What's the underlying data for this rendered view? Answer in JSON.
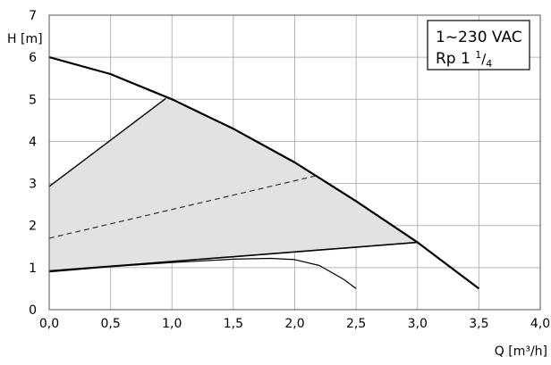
{
  "chart_data": {
    "type": "line",
    "xlabel": "Q [m³/h]",
    "ylabel": "H [m]",
    "xlim": [
      0,
      4.0
    ],
    "ylim": [
      0,
      7
    ],
    "grid": true,
    "x_ticks": [
      "0,0",
      "0,5",
      "1,0",
      "1,5",
      "2,0",
      "2,5",
      "3,0",
      "3,5",
      "4,0"
    ],
    "y_ticks": [
      "0",
      "1",
      "2",
      "3",
      "4",
      "5",
      "6",
      "7"
    ],
    "legend_box": {
      "line1": "1~230 VAC",
      "line2_prefix": "Rp 1 ",
      "line2_num": "1",
      "line2_slash": "/",
      "line2_den": "4"
    },
    "shaded_region": [
      [
        0,
        0.92
      ],
      [
        0.0,
        2.93
      ],
      [
        0.95,
        5.02
      ],
      [
        1.5,
        4.3
      ],
      [
        2.0,
        3.5
      ],
      [
        2.5,
        2.58
      ],
      [
        3.0,
        1.6
      ],
      [
        1.0,
        1.12
      ]
    ],
    "series": [
      {
        "style": "max-curve",
        "x": [
          0,
          0.5,
          1.0,
          1.5,
          2.0,
          2.5,
          3.0,
          3.5
        ],
        "y": [
          6.0,
          5.6,
          5.0,
          4.3,
          3.5,
          2.58,
          1.6,
          0.5
        ]
      },
      {
        "style": "constant-pressure-max",
        "x": [
          0,
          0.95
        ],
        "y": [
          2.93,
          5.02
        ]
      },
      {
        "style": "dashed",
        "x": [
          0,
          2.2
        ],
        "y": [
          1.7,
          3.2
        ]
      },
      {
        "style": "lower-limit",
        "x": [
          0,
          3.0
        ],
        "y": [
          0.92,
          1.6
        ]
      },
      {
        "style": "min-curve",
        "x": [
          0,
          0.5,
          1.0,
          1.5,
          1.8,
          2.0,
          2.2,
          2.4,
          2.5
        ],
        "y": [
          0.9,
          1.02,
          1.12,
          1.2,
          1.22,
          1.19,
          1.05,
          0.72,
          0.5
        ]
      }
    ]
  }
}
